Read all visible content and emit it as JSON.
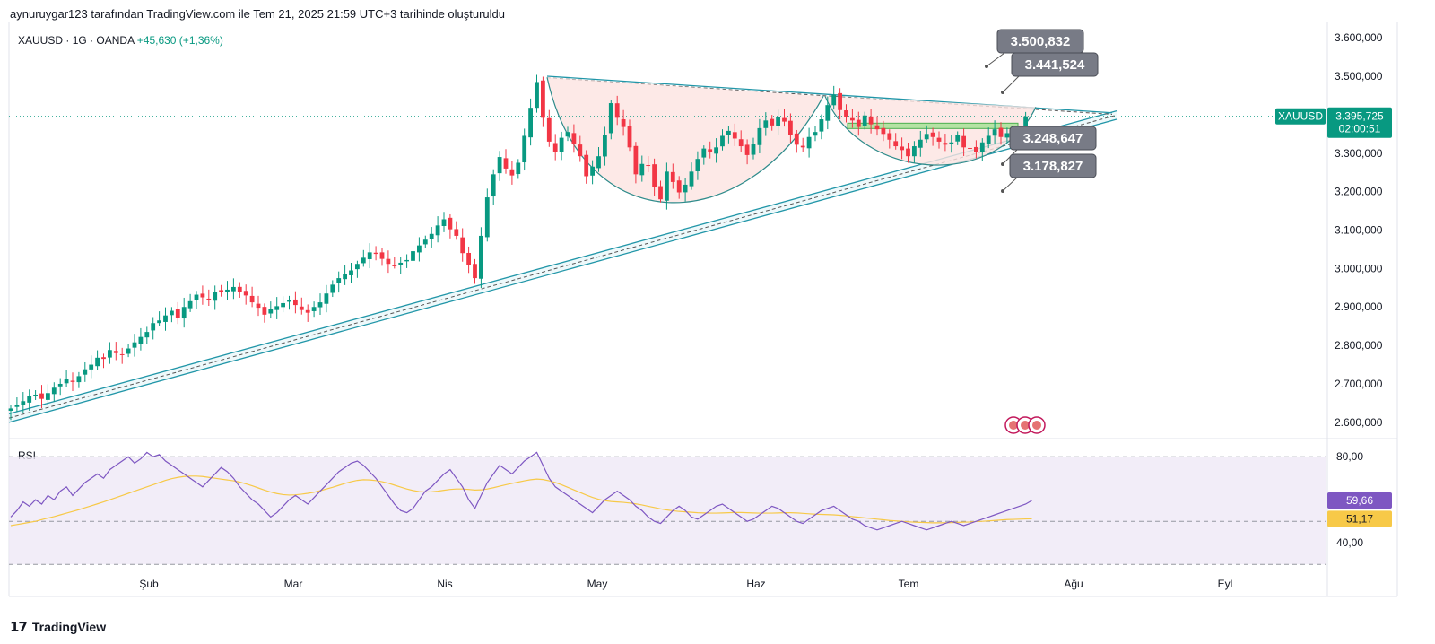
{
  "header": {
    "title": "aynuruygar123 tarafından TradingView.com ile Tem 21, 2025 21:59 UTC+3 tarihinde oluşturuldu"
  },
  "symbol": {
    "name": "XAUUSD",
    "interval": "1G",
    "exchange": "OANDA",
    "sep": "·",
    "change": "+45,630 (+1,36%)",
    "change_color": "#089981"
  },
  "price_tag": {
    "symbol": "XAUUSD",
    "price": "3.395,725",
    "countdown": "02:00:51",
    "color": "#089981"
  },
  "callouts": [
    "3.500,832",
    "3.441,524",
    "3.248,647",
    "3.178,827"
  ],
  "rsi": {
    "label": "RSI",
    "value_label": "59,66",
    "ma_label": "51,17",
    "value_color": "#7e57c2",
    "ma_color": "#f7c948",
    "axis": [
      "80,00",
      "40,00"
    ]
  },
  "footer": {
    "brand": "TradingView",
    "logo": "tradingview-logo"
  },
  "colors": {
    "up": "#089981",
    "down": "#f23645",
    "channel": "#2196a8",
    "pattern_fill": "#fde4e1",
    "band_fill": "#ede7f6",
    "callout_bg": "#787b86"
  },
  "chart_data": [
    {
      "type": "candlestick",
      "symbol": "XAUUSD",
      "y_ticks": [
        "3.600,000",
        "3.500,000",
        "3.400,000",
        "3.300,000",
        "3.200,000",
        "3.100,000",
        "3.000,000",
        "2.900,000",
        "2.800,000",
        "2.700,000",
        "2.600,000"
      ],
      "ylim": [
        2560,
        3640
      ],
      "x_ticks": [
        "Şub",
        "Mar",
        "Nis",
        "May",
        "Haz",
        "Tem",
        "Ağu",
        "Eyl"
      ],
      "close": [
        2636,
        2645,
        2655,
        2668,
        2672,
        2661,
        2676,
        2690,
        2700,
        2712,
        2705,
        2720,
        2738,
        2750,
        2768,
        2765,
        2788,
        2780,
        2775,
        2792,
        2808,
        2822,
        2835,
        2858,
        2865,
        2878,
        2890,
        2872,
        2900,
        2915,
        2932,
        2925,
        2918,
        2940,
        2938,
        2945,
        2952,
        2938,
        2930,
        2912,
        2898,
        2880,
        2895,
        2902,
        2910,
        2918,
        2905,
        2892,
        2885,
        2900,
        2912,
        2935,
        2958,
        2975,
        2985,
        2995,
        3012,
        3028,
        3042,
        3038,
        3025,
        3012,
        3008,
        3015,
        3022,
        3045,
        3060,
        3075,
        3090,
        3112,
        3128,
        3102,
        3085,
        3040,
        3008,
        2975,
        3085,
        3185,
        3245,
        3290,
        3260,
        3242,
        3275,
        3345,
        3418,
        3485,
        3392,
        3330,
        3302,
        3340,
        3355,
        3325,
        3292,
        3240,
        3265,
        3292,
        3348,
        3430,
        3392,
        3368,
        3315,
        3245,
        3272,
        3268,
        3212,
        3180,
        3252,
        3225,
        3198,
        3218,
        3252,
        3285,
        3312,
        3302,
        3315,
        3345,
        3358,
        3338,
        3318,
        3295,
        3325,
        3365,
        3385,
        3372,
        3395,
        3382,
        3348,
        3322,
        3315,
        3342,
        3355,
        3388,
        3425,
        3452,
        3412,
        3395,
        3385,
        3368,
        3398,
        3375,
        3362,
        3350,
        3335,
        3318,
        3308,
        3292,
        3318,
        3335,
        3350,
        3342,
        3330,
        3322,
        3328,
        3348,
        3315,
        3312,
        3302,
        3328,
        3345,
        3362,
        3342,
        3352,
        3338,
        3348,
        3395.7
      ],
      "annotations": [
        "3.500,832",
        "3.441,524",
        "3.248,647",
        "3.178,827"
      ]
    },
    {
      "type": "line",
      "title": "RSI",
      "ylim": [
        28,
        88
      ],
      "axis_ticks": [
        "80,00",
        "40,00"
      ],
      "series": [
        {
          "name": "RSI",
          "last": "59,66",
          "values": [
            52,
            55,
            59,
            57,
            60,
            58,
            62,
            60,
            64,
            66,
            62,
            65,
            68,
            70,
            72,
            70,
            74,
            76,
            78,
            80,
            77,
            79,
            82,
            80,
            81,
            78,
            76,
            74,
            72,
            70,
            68,
            66,
            69,
            72,
            75,
            73,
            70,
            66,
            63,
            60,
            58,
            55,
            52,
            54,
            57,
            60,
            62,
            60,
            58,
            61,
            64,
            67,
            70,
            73,
            75,
            77,
            78,
            76,
            73,
            70,
            66,
            62,
            58,
            55,
            54,
            56,
            60,
            64,
            66,
            69,
            72,
            74,
            70,
            66,
            60,
            56,
            62,
            68,
            72,
            76,
            74,
            72,
            75,
            78,
            80,
            82,
            76,
            70,
            66,
            64,
            62,
            60,
            58,
            56,
            54,
            57,
            60,
            62,
            64,
            62,
            60,
            57,
            55,
            52,
            50,
            49,
            52,
            55,
            57,
            55,
            52,
            51,
            53,
            55,
            57,
            58,
            56,
            54,
            52,
            50,
            51,
            53,
            55,
            57,
            56,
            54,
            52,
            50,
            49,
            51,
            53,
            55,
            56,
            57,
            55,
            53,
            51,
            50,
            48,
            47,
            46,
            47,
            48,
            49,
            50,
            49,
            48,
            47,
            46,
            47,
            48,
            49,
            50,
            49,
            48,
            49,
            50,
            51,
            52,
            53,
            54,
            55,
            56,
            57,
            58,
            59.66
          ]
        },
        {
          "name": "MA",
          "last": "51,17",
          "values": [
            48,
            48.5,
            49,
            49.5,
            50,
            50.8,
            51.5,
            52.2,
            53,
            53.8,
            54.6,
            55.4,
            56.3,
            57.2,
            58.1,
            59,
            60,
            61,
            62,
            63,
            64,
            65,
            66,
            67,
            68,
            69,
            69.8,
            70.4,
            70.8,
            71,
            71,
            70.8,
            70.4,
            70,
            69.6,
            69.2,
            68.8,
            68.2,
            67.4,
            66.5,
            65.5,
            64.5,
            63.6,
            62.9,
            62.4,
            62.2,
            62.3,
            62.6,
            63,
            63.5,
            64.2,
            65,
            65.8,
            66.7,
            67.6,
            68.4,
            69,
            69.3,
            69.2,
            68.9,
            68.4,
            67.7,
            66.8,
            65.9,
            65,
            64.3,
            63.8,
            63.6,
            63.7,
            64,
            64.4,
            64.8,
            65,
            65,
            64.8,
            64.5,
            64.6,
            65,
            65.6,
            66.3,
            67,
            67.6,
            68.2,
            68.8,
            69.3,
            69.6,
            69.4,
            68.8,
            68,
            67,
            65.8,
            64.6,
            63.4,
            62.2,
            61.1,
            60.2,
            59.6,
            59.2,
            59,
            58.8,
            58.5,
            58.1,
            57.6,
            57,
            56.4,
            55.8,
            55.3,
            54.9,
            54.6,
            54.4,
            54.2,
            54,
            53.9,
            53.8,
            53.8,
            53.9,
            54,
            54.1,
            54.1,
            54,
            53.9,
            53.8,
            53.8,
            53.8,
            53.9,
            54,
            54,
            53.9,
            53.7,
            53.5,
            53.3,
            53.2,
            53.1,
            53,
            52.8,
            52.5,
            52.2,
            51.9,
            51.6,
            51.3,
            51,
            50.7,
            50.4,
            50.2,
            50,
            49.8,
            49.6,
            49.5,
            49.4,
            49.3,
            49.3,
            49.3,
            49.4,
            49.5,
            49.6,
            49.7,
            49.9,
            50,
            50.2,
            50.4,
            50.6,
            50.8,
            50.9,
            51,
            51.1,
            51.17
          ]
        }
      ]
    }
  ]
}
